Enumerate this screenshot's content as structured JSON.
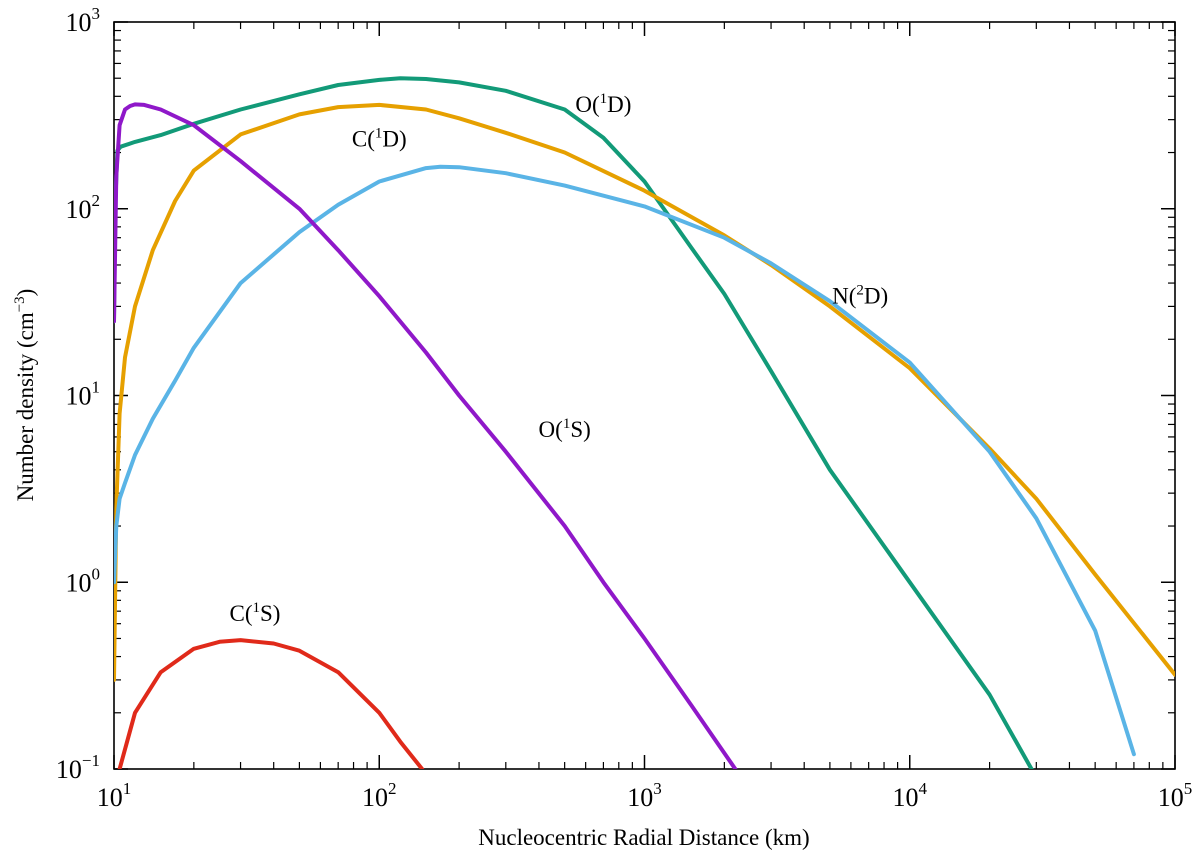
{
  "chart_data": {
    "type": "line",
    "title": "",
    "xlabel": "Nucleocentric Radial Distance (km)",
    "ylabel": "Number density (cm",
    "ylabel_sup": "−3",
    "ylabel_close": ")",
    "xscale": "log",
    "yscale": "log",
    "xlim": [
      10,
      100000
    ],
    "ylim": [
      0.1,
      1000
    ],
    "grid": false,
    "legend": "none",
    "x_ticks": [
      {
        "base": "10",
        "exp": "1",
        "value": 10
      },
      {
        "base": "10",
        "exp": "2",
        "value": 100
      },
      {
        "base": "10",
        "exp": "3",
        "value": 1000
      },
      {
        "base": "10",
        "exp": "4",
        "value": 10000
      },
      {
        "base": "10",
        "exp": "5",
        "value": 100000
      }
    ],
    "y_ticks": [
      {
        "base": "10",
        "exp": "−1",
        "value": 0.1
      },
      {
        "base": "10",
        "exp": "0",
        "value": 1
      },
      {
        "base": "10",
        "exp": "1",
        "value": 10
      },
      {
        "base": "10",
        "exp": "2",
        "value": 100
      },
      {
        "base": "10",
        "exp": "3",
        "value": 1000
      }
    ],
    "series": [
      {
        "id": "o1d",
        "species": "O(",
        "sup": "1",
        "term": "D)",
        "color": "#129a78",
        "label_at": [
          700,
          330
        ],
        "points": [
          [
            10,
            25
          ],
          [
            10.1,
            100
          ],
          [
            10.3,
            205
          ],
          [
            10.6,
            215
          ],
          [
            12,
            228
          ],
          [
            15,
            248
          ],
          [
            20,
            285
          ],
          [
            30,
            340
          ],
          [
            50,
            410
          ],
          [
            70,
            460
          ],
          [
            100,
            490
          ],
          [
            120,
            500
          ],
          [
            150,
            495
          ],
          [
            200,
            475
          ],
          [
            300,
            428
          ],
          [
            500,
            340
          ],
          [
            700,
            240
          ],
          [
            1000,
            140
          ],
          [
            1500,
            62
          ],
          [
            2000,
            35
          ],
          [
            3000,
            13.5
          ],
          [
            5000,
            4
          ],
          [
            10000,
            1
          ],
          [
            20000,
            0.25
          ],
          [
            30000,
            0.09
          ]
        ]
      },
      {
        "id": "n2d",
        "species": "N(",
        "sup": "2",
        "term": "D)",
        "color": "#e6a000",
        "label_at": [
          6500,
          31
        ],
        "points": [
          [
            10,
            0.3
          ],
          [
            10.2,
            2.5
          ],
          [
            10.5,
            8
          ],
          [
            11,
            16
          ],
          [
            12,
            30
          ],
          [
            14,
            60
          ],
          [
            17,
            110
          ],
          [
            20,
            160
          ],
          [
            30,
            250
          ],
          [
            50,
            320
          ],
          [
            70,
            350
          ],
          [
            100,
            360
          ],
          [
            150,
            340
          ],
          [
            200,
            305
          ],
          [
            300,
            255
          ],
          [
            500,
            200
          ],
          [
            1000,
            125
          ],
          [
            2000,
            72
          ],
          [
            3000,
            50
          ],
          [
            5000,
            30
          ],
          [
            10000,
            14
          ],
          [
            20000,
            5.2
          ],
          [
            30000,
            2.8
          ],
          [
            50000,
            1.1
          ],
          [
            100000,
            0.32
          ]
        ]
      },
      {
        "id": "c1d",
        "species": "C(",
        "sup": "1",
        "term": "D)",
        "color": "#5ab4e6",
        "label_at": [
          100,
          215
        ],
        "points": [
          [
            10,
            1
          ],
          [
            10.2,
            2
          ],
          [
            10.5,
            2.8
          ],
          [
            11,
            3.4
          ],
          [
            12,
            4.8
          ],
          [
            14,
            7.5
          ],
          [
            17,
            12
          ],
          [
            20,
            18
          ],
          [
            30,
            40
          ],
          [
            50,
            75
          ],
          [
            70,
            105
          ],
          [
            100,
            140
          ],
          [
            150,
            165
          ],
          [
            170,
            168
          ],
          [
            200,
            167
          ],
          [
            300,
            155
          ],
          [
            500,
            133
          ],
          [
            1000,
            103
          ],
          [
            2000,
            70
          ],
          [
            3000,
            51
          ],
          [
            5000,
            32
          ],
          [
            10000,
            15
          ],
          [
            20000,
            5
          ],
          [
            30000,
            2.2
          ],
          [
            50000,
            0.55
          ],
          [
            70000,
            0.12
          ]
        ]
      },
      {
        "id": "o1s",
        "species": "O(",
        "sup": "1",
        "term": "S)",
        "color": "#8f18c9",
        "label_at": [
          500,
          6
        ],
        "points": [
          [
            10,
            25
          ],
          [
            10.2,
            150
          ],
          [
            10.5,
            280
          ],
          [
            11,
            340
          ],
          [
            11.5,
            355
          ],
          [
            12,
            362
          ],
          [
            13,
            360
          ],
          [
            15,
            340
          ],
          [
            20,
            280
          ],
          [
            30,
            180
          ],
          [
            50,
            100
          ],
          [
            70,
            60
          ],
          [
            100,
            34
          ],
          [
            150,
            17
          ],
          [
            200,
            10
          ],
          [
            300,
            5
          ],
          [
            500,
            2
          ],
          [
            700,
            1
          ],
          [
            1000,
            0.5
          ],
          [
            1500,
            0.22
          ],
          [
            2200,
            0.1
          ]
        ]
      },
      {
        "id": "c1s",
        "species": "C(",
        "sup": "1",
        "term": "S)",
        "color": "#e02a1a",
        "label_at": [
          34,
          0.62
        ],
        "points": [
          [
            10.5,
            0.1
          ],
          [
            12,
            0.2
          ],
          [
            15,
            0.33
          ],
          [
            20,
            0.44
          ],
          [
            25,
            0.48
          ],
          [
            30,
            0.49
          ],
          [
            40,
            0.47
          ],
          [
            50,
            0.43
          ],
          [
            70,
            0.33
          ],
          [
            100,
            0.2
          ],
          [
            120,
            0.14
          ],
          [
            145,
            0.1
          ]
        ]
      }
    ]
  }
}
